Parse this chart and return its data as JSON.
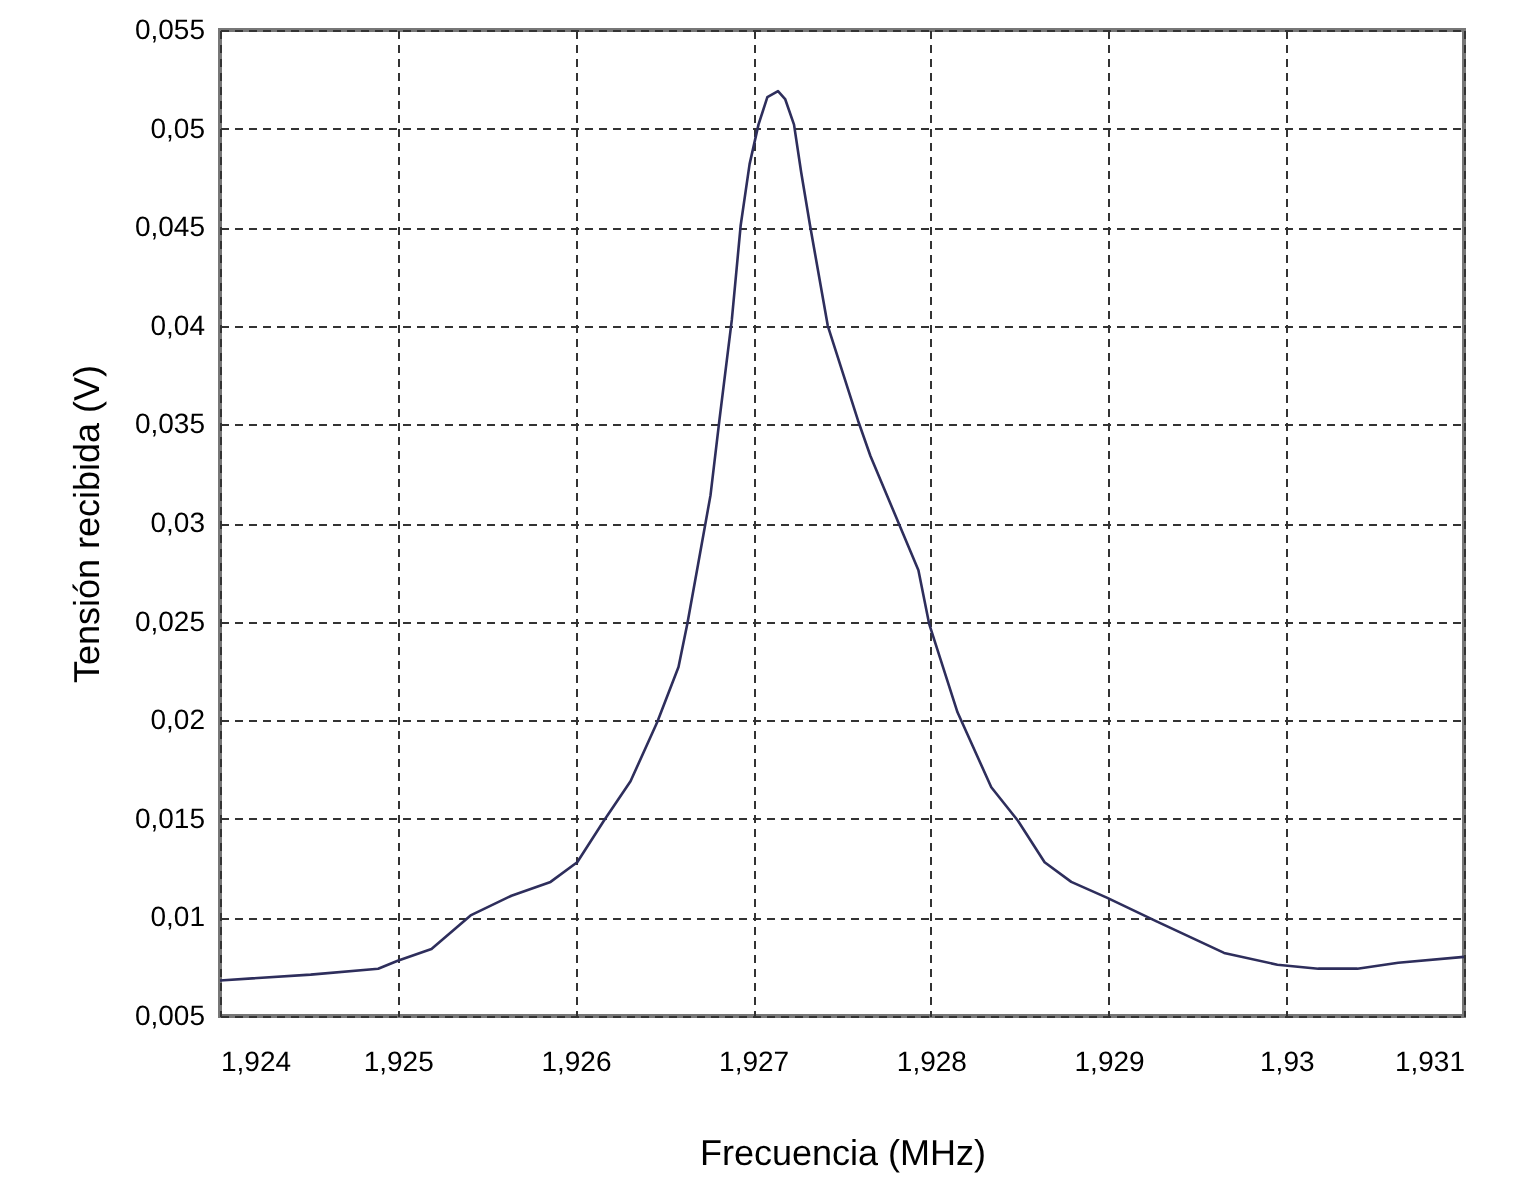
{
  "chart_data": {
    "type": "line",
    "xlabel": "Frecuencia (MHz)",
    "ylabel": "Tensión recibida (V)",
    "x": [
      1.924,
      1.92451,
      1.92489,
      1.925,
      1.92519,
      1.92541,
      1.92564,
      1.92586,
      1.92601,
      1.92616,
      1.92631,
      1.92646,
      1.92658,
      1.92663,
      1.92669,
      1.92676,
      1.92681,
      1.92688,
      1.92693,
      1.92698,
      1.92703,
      1.92708,
      1.92714,
      1.92718,
      1.92723,
      1.92727,
      1.92732,
      1.92742,
      1.92759,
      1.92766,
      1.92793,
      1.92799,
      1.92815,
      1.92834,
      1.92849,
      1.92864,
      1.92879,
      1.92899,
      1.92927,
      1.92965,
      1.92995,
      1.93018,
      1.9304,
      1.93063,
      1.931
    ],
    "series": [
      {
        "color": "#2e2e5c",
        "values": [
          0.0068,
          0.0071,
          0.0074,
          0.0078,
          0.0084,
          0.0101,
          0.0111,
          0.0118,
          0.0128,
          0.0149,
          0.0169,
          0.0199,
          0.0227,
          0.0249,
          0.0279,
          0.0314,
          0.0352,
          0.0403,
          0.0451,
          0.0482,
          0.0502,
          0.0516,
          0.0519,
          0.0515,
          0.0502,
          0.0478,
          0.0451,
          0.04,
          0.0352,
          0.0334,
          0.0276,
          0.0249,
          0.0204,
          0.0166,
          0.0149,
          0.0128,
          0.0118,
          0.011,
          0.0098,
          0.0082,
          0.0076,
          0.0074,
          0.0074,
          0.0077,
          0.008
        ]
      }
    ],
    "xlim": [
      1.924,
      1.931
    ],
    "xticks": [
      {
        "value": 1.924,
        "label": "1,924"
      },
      {
        "value": 1.925,
        "label": "1,925"
      },
      {
        "value": 1.926,
        "label": "1,926"
      },
      {
        "value": 1.927,
        "label": "1,927"
      },
      {
        "value": 1.928,
        "label": "1,928"
      },
      {
        "value": 1.929,
        "label": "1,929"
      },
      {
        "value": 1.93,
        "label": "1,93"
      },
      {
        "value": 1.931,
        "label": "1,931"
      }
    ],
    "ylim": [
      0.005,
      0.055
    ],
    "yticks": [
      {
        "value": 0.005,
        "label": "0,005"
      },
      {
        "value": 0.01,
        "label": "0,01"
      },
      {
        "value": 0.015,
        "label": "0,015"
      },
      {
        "value": 0.02,
        "label": "0,02"
      },
      {
        "value": 0.025,
        "label": "0,025"
      },
      {
        "value": 0.03,
        "label": "0,03"
      },
      {
        "value": 0.035,
        "label": "0,035"
      },
      {
        "value": 0.04,
        "label": "0,04"
      },
      {
        "value": 0.045,
        "label": "0,045"
      },
      {
        "value": 0.05,
        "label": "0,05"
      },
      {
        "value": 0.055,
        "label": "0,055"
      }
    ],
    "grid": true,
    "line_style": "solid"
  }
}
